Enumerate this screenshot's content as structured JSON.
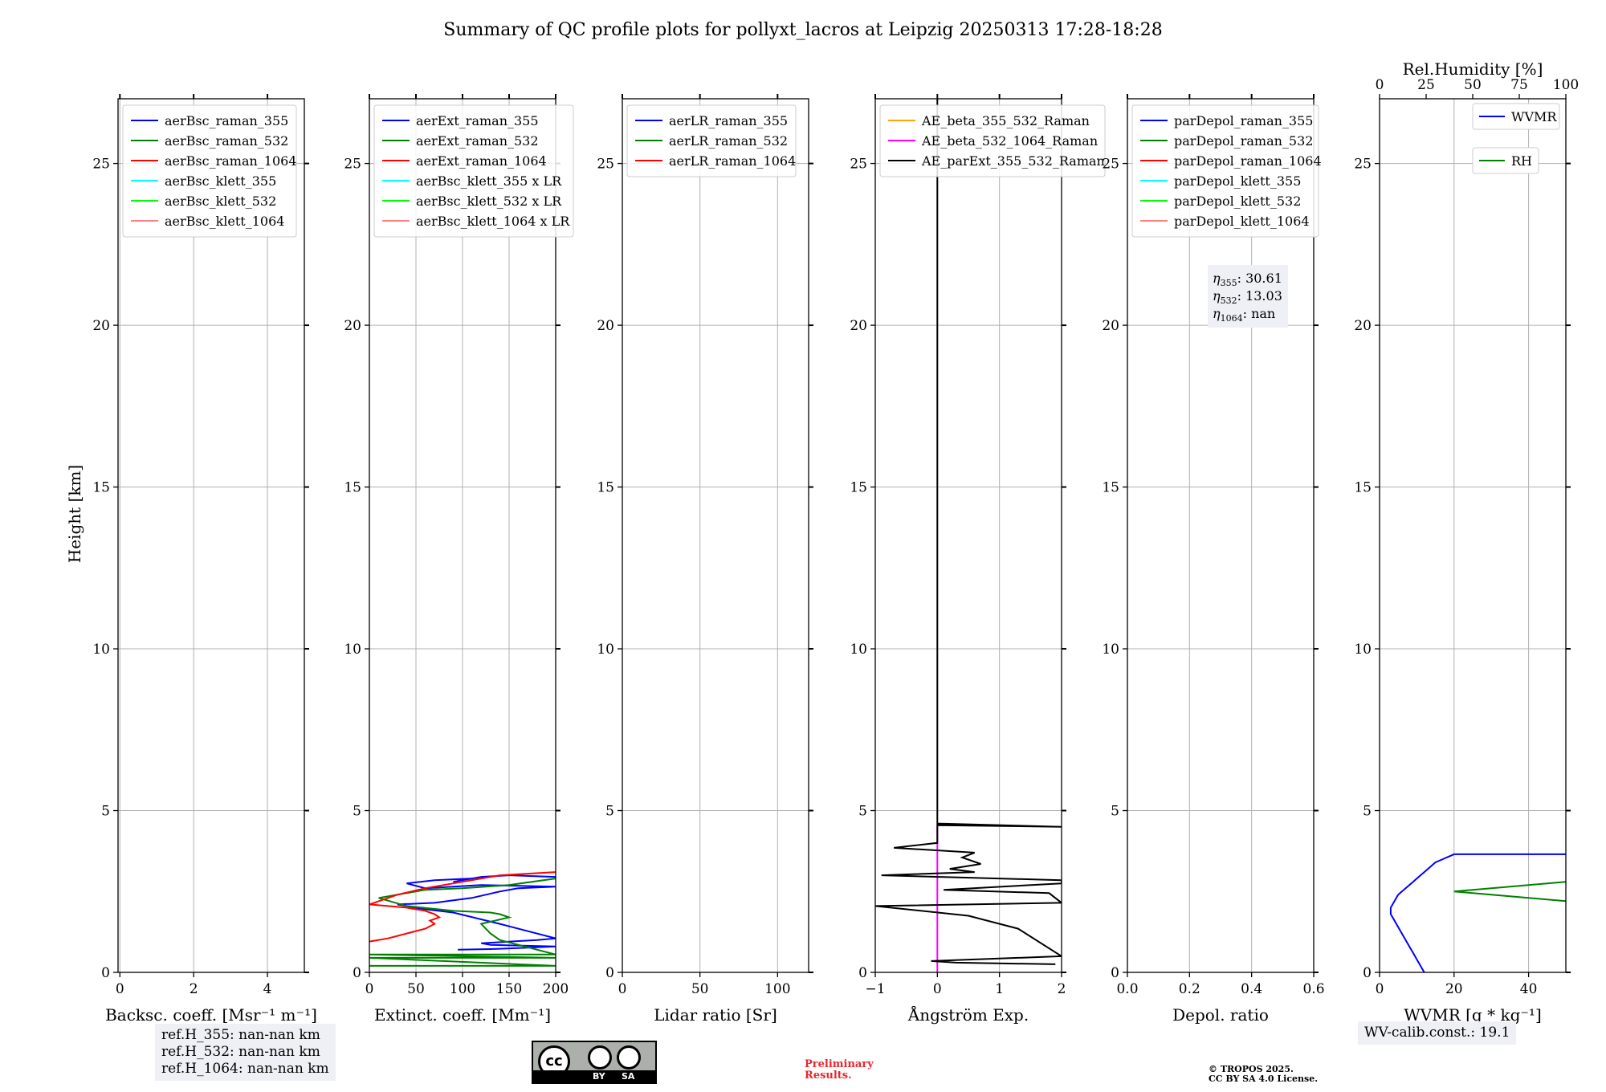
{
  "title": "Summary of QC profile plots for pollyxt_lacros at Leipzig 20250313 17:28-18:28",
  "ylabel": "Height [km]",
  "colors": {
    "c355": "#0000ff",
    "c532": "#008000",
    "c1064": "#ff0000",
    "k355": "#00ffff",
    "k532": "#00ff00",
    "k1064": "#ff8080",
    "orange": "#ffa500",
    "magenta": "#ff00ff",
    "black": "#000000"
  },
  "chart_data": [
    {
      "type": "line",
      "xlabel": "Backsc. coeff. [Msr⁻¹ m⁻¹]",
      "xlim": [
        -0.05,
        5
      ],
      "ylim": [
        0,
        27
      ],
      "xticks": [
        0,
        2,
        4
      ],
      "yticks": [
        0,
        5,
        10,
        15,
        20,
        25
      ],
      "legend": [
        "aerBsc_raman_355",
        "aerBsc_raman_532",
        "aerBsc_raman_1064",
        "aerBsc_klett_355",
        "aerBsc_klett_532",
        "aerBsc_klett_1064"
      ],
      "series": []
    },
    {
      "type": "line",
      "xlabel": "Extinct. coeff. [Mm⁻¹]",
      "xlim": [
        0,
        200
      ],
      "ylim": [
        0,
        27
      ],
      "xticks": [
        0,
        50,
        100,
        150,
        200
      ],
      "yticks": [
        0,
        5,
        10,
        15,
        20,
        25
      ],
      "legend": [
        "aerExt_raman_355",
        "aerExt_raman_532",
        "aerExt_raman_1064",
        "aerBsc_klett_355 x LR",
        "aerBsc_klett_532 x LR",
        "aerBsc_klett_1064 x LR"
      ],
      "series": [
        {
          "name": "aerExt_raman_355",
          "x": [
            95,
            130,
            160,
            200,
            130,
            120,
            150,
            180,
            200,
            140,
            90,
            60,
            30,
            70,
            110,
            140,
            160,
            200,
            120,
            60,
            40,
            70,
            110,
            90,
            120,
            150,
            200
          ],
          "y": [
            0.7,
            0.72,
            0.75,
            0.8,
            0.85,
            0.9,
            0.95,
            1.0,
            1.05,
            1.5,
            1.85,
            1.95,
            2.1,
            2.15,
            2.3,
            2.5,
            2.6,
            2.65,
            2.7,
            2.6,
            2.75,
            2.85,
            2.9,
            2.8,
            2.95,
            3.0,
            2.95
          ]
        },
        {
          "name": "aerExt_raman_532",
          "x": [
            0,
            200,
            0,
            200,
            0,
            200,
            140,
            130,
            120,
            150,
            140,
            130,
            90,
            40,
            10,
            60,
            100,
            150,
            200
          ],
          "y": [
            0.2,
            0.2,
            0.45,
            0.45,
            0.55,
            0.55,
            1.0,
            1.2,
            1.5,
            1.7,
            1.8,
            1.85,
            1.9,
            2.05,
            2.3,
            2.55,
            2.6,
            2.7,
            2.9
          ]
        },
        {
          "name": "aerExt_raman_1064",
          "x": [
            0,
            20,
            40,
            60,
            70,
            65,
            75,
            70,
            60,
            50,
            40,
            20,
            0,
            30,
            60,
            100,
            140,
            200
          ],
          "y": [
            0.95,
            1.05,
            1.2,
            1.35,
            1.5,
            1.6,
            1.7,
            1.8,
            1.9,
            1.95,
            2.0,
            2.05,
            2.1,
            2.4,
            2.6,
            2.8,
            3.0,
            3.1
          ]
        }
      ]
    },
    {
      "type": "line",
      "xlabel": "Lidar ratio [Sr]",
      "xlim": [
        0,
        120
      ],
      "ylim": [
        0,
        27
      ],
      "xticks": [
        0,
        50,
        100
      ],
      "yticks": [
        0,
        5,
        10,
        15,
        20,
        25
      ],
      "legend": [
        "aerLR_raman_355",
        "aerLR_raman_532",
        "aerLR_raman_1064"
      ],
      "series": []
    },
    {
      "type": "line",
      "xlabel": "Ångström Exp.",
      "xlim": [
        -1,
        2
      ],
      "ylim": [
        0,
        27
      ],
      "xticks": [
        -1,
        0,
        1,
        2
      ],
      "yticks": [
        0,
        5,
        10,
        15,
        20,
        25
      ],
      "legend": [
        "AE_beta_355_532_Raman",
        "AE_beta_532_1064_Raman",
        "AE_parExt_355_532_Raman"
      ],
      "series": [
        {
          "name": "AE_beta_532_1064_Raman",
          "x": [
            0,
            0
          ],
          "y": [
            0,
            4.5
          ]
        },
        {
          "name": "AE_parExt_355_532_Raman",
          "x": [
            1.9,
            0.3,
            -0.1,
            2.0,
            1.3,
            0.5,
            -1.0,
            2.0,
            1.8,
            0.1,
            2.0,
            2.0,
            -0.9,
            0.6,
            0.2,
            0.7,
            0.4,
            0.6,
            -0.7,
            0.0,
            0.0,
            2.0,
            0.0,
            0.0
          ],
          "y": [
            0.25,
            0.3,
            0.35,
            0.5,
            1.35,
            1.75,
            2.05,
            2.15,
            2.45,
            2.55,
            2.75,
            2.85,
            3.0,
            3.1,
            3.2,
            3.35,
            3.55,
            3.7,
            3.85,
            4.0,
            4.55,
            4.5,
            4.6,
            27.0
          ]
        }
      ]
    },
    {
      "type": "line",
      "xlabel": "Depol. ratio",
      "xlim": [
        0,
        0.6
      ],
      "ylim": [
        0,
        27
      ],
      "xticks": [
        0.0,
        0.2,
        0.4,
        0.6
      ],
      "yticks": [
        0,
        5,
        10,
        15,
        20,
        25
      ],
      "legend": [
        "parDepol_raman_355",
        "parDepol_raman_532",
        "parDepol_raman_1064",
        "parDepol_klett_355",
        "parDepol_klett_532",
        "parDepol_klett_1064"
      ],
      "annotation": {
        "eta355": "30.61",
        "eta532": "13.03",
        "eta1064": "nan"
      },
      "series": []
    },
    {
      "type": "line",
      "xlabel": "WVMR [g * kg⁻¹]",
      "x2label": "Rel.Humidity [%]",
      "xlim": [
        0,
        50
      ],
      "x2lim": [
        0,
        100
      ],
      "ylim": [
        0,
        27
      ],
      "xticks": [
        0,
        20,
        40
      ],
      "x2ticks": [
        0,
        25,
        50,
        75,
        100
      ],
      "yticks": [
        0,
        5,
        10,
        15,
        20,
        25
      ],
      "legend": [
        "WVMR",
        "RH"
      ],
      "series": [
        {
          "name": "WVMR",
          "x": [
            12,
            11,
            10,
            9,
            8,
            7,
            6,
            5,
            4,
            3,
            3,
            4,
            5,
            6,
            7,
            8,
            9,
            10,
            11,
            12,
            13,
            14,
            15,
            16,
            17,
            18,
            19,
            20,
            22,
            24,
            26,
            28,
            30,
            33,
            36,
            40,
            45,
            50
          ],
          "y": [
            0.0,
            0.2,
            0.4,
            0.6,
            0.8,
            1.0,
            1.2,
            1.4,
            1.6,
            1.8,
            2.0,
            2.2,
            2.4,
            2.5,
            2.6,
            2.7,
            2.8,
            2.9,
            3.0,
            3.1,
            3.2,
            3.3,
            3.4,
            3.45,
            3.5,
            3.55,
            3.6,
            3.65,
            3.65,
            3.65,
            3.65,
            3.65,
            3.65,
            3.65,
            3.65,
            3.65,
            3.65,
            3.65
          ]
        },
        {
          "name": "RH",
          "x": [
            100,
            98,
            96,
            94,
            92,
            90,
            80,
            70,
            60,
            50,
            40,
            30,
            20,
            30,
            40,
            50
          ],
          "y": [
            0.8,
            1.0,
            1.2,
            1.4,
            1.6,
            1.8,
            1.9,
            2.0,
            2.1,
            2.2,
            2.3,
            2.4,
            2.5,
            2.6,
            2.7,
            2.8
          ]
        }
      ]
    }
  ],
  "refH": [
    "ref.H_355: nan-nan km",
    "ref.H_532: nan-nan km",
    "ref.H_1064: nan-nan km"
  ],
  "wv_calib": "WV-calib.const.: 19.1",
  "preliminary": [
    "Preliminary",
    "Results."
  ],
  "copyright": [
    "© TROPOS 2025.",
    "CC BY SA 4.0 License."
  ],
  "cc_logo": {
    "top": "cc",
    "by": "BY",
    "sa": "SA"
  }
}
